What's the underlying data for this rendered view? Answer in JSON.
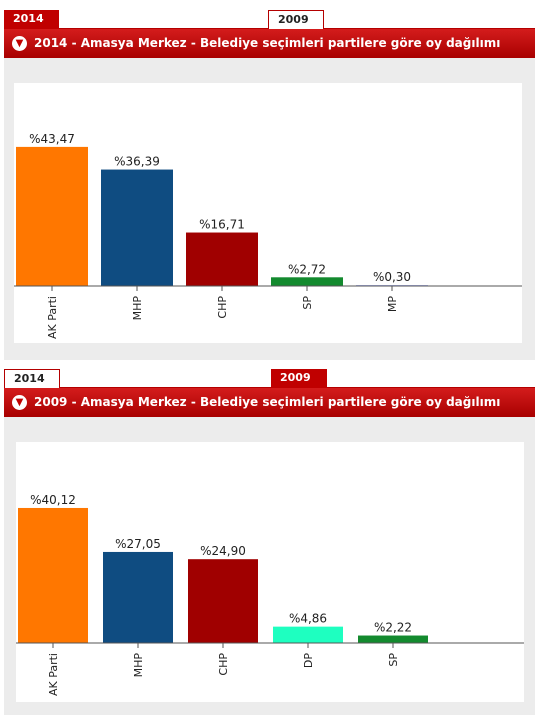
{
  "tabs": [
    "2014",
    "2009"
  ],
  "panels": [
    {
      "title": "2014 - Amasya Merkez - Belediye seçimleri partilere göre oy dağılımı",
      "active_tab": "2014",
      "chart_data": {
        "type": "bar",
        "categories": [
          "AK Parti",
          "MHP",
          "CHP",
          "SP",
          "MP"
        ],
        "values": [
          43.47,
          36.39,
          16.71,
          2.72,
          0.3
        ],
        "labels": [
          "%43,47",
          "%36,39",
          "%16,71",
          "%2,72",
          "%0,30"
        ],
        "colors": [
          "#ff7700",
          "#0f4c81",
          "#a00000",
          "#138a2e",
          "#aab2f0"
        ],
        "ylim": [
          0,
          45
        ],
        "grid": false,
        "title": "",
        "xlabel": "",
        "ylabel": ""
      }
    },
    {
      "title": "2009 - Amasya Merkez - Belediye seçimleri partilere göre oy dağılımı",
      "active_tab": "2009",
      "chart_data": {
        "type": "bar",
        "categories": [
          "AK Parti",
          "MHP",
          "CHP",
          "DP",
          "SP"
        ],
        "values": [
          40.12,
          27.05,
          24.9,
          4.86,
          2.22
        ],
        "labels": [
          "%40,12",
          "%27,05",
          "%24,90",
          "%4,86",
          "%2,22"
        ],
        "colors": [
          "#ff7700",
          "#0f4c81",
          "#a00000",
          "#1effc0",
          "#138a2e"
        ],
        "ylim": [
          0,
          41
        ],
        "grid": false,
        "title": "",
        "xlabel": "",
        "ylabel": ""
      }
    }
  ]
}
